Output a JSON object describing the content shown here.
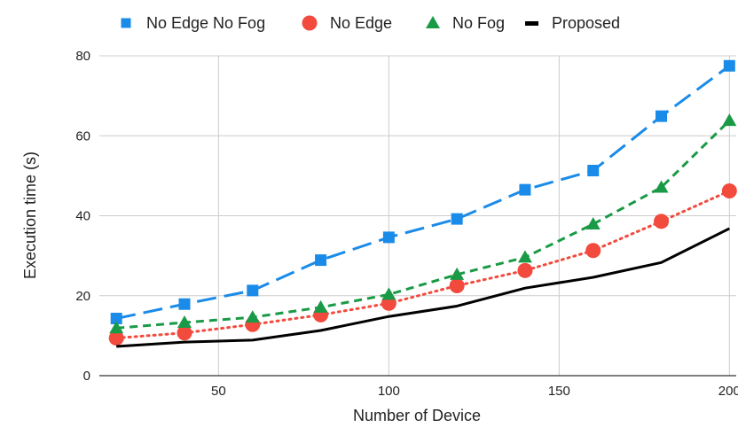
{
  "chart_data": {
    "type": "line",
    "xlabel": "Number of Device",
    "ylabel": "Execution time (s)",
    "x": [
      20,
      40,
      60,
      80,
      100,
      120,
      140,
      160,
      180,
      200
    ],
    "xlim": [
      15,
      202
    ],
    "ylim": [
      0,
      80
    ],
    "xticks": [
      50,
      100,
      150,
      200
    ],
    "yticks": [
      0,
      20,
      40,
      60,
      80
    ],
    "grid": true,
    "legend_position": "top",
    "series": [
      {
        "name": "No Edge No Fog",
        "color": "#1a8be8",
        "marker": "square",
        "dash": "long-dash",
        "values": [
          14.3,
          17.9,
          21.3,
          28.9,
          34.6,
          39.2,
          46.5,
          51.3,
          64.9,
          77.5
        ]
      },
      {
        "name": "No Edge",
        "color": "#f24a3d",
        "marker": "circle",
        "dash": "dotted",
        "values": [
          9.4,
          10.7,
          12.8,
          15.2,
          18.1,
          22.5,
          26.3,
          31.3,
          38.6,
          46.2
        ]
      },
      {
        "name": "No Fog",
        "color": "#1a9a46",
        "marker": "triangle",
        "dash": "short-dash",
        "values": [
          11.9,
          13.3,
          14.6,
          17.1,
          20.3,
          25.3,
          29.6,
          37.9,
          47.1,
          63.8
        ]
      },
      {
        "name": "Proposed",
        "color": "#000000",
        "marker": "none",
        "dash": "solid",
        "values": [
          7.3,
          8.4,
          8.9,
          11.3,
          14.8,
          17.4,
          21.9,
          24.6,
          28.3,
          36.8
        ]
      }
    ]
  }
}
